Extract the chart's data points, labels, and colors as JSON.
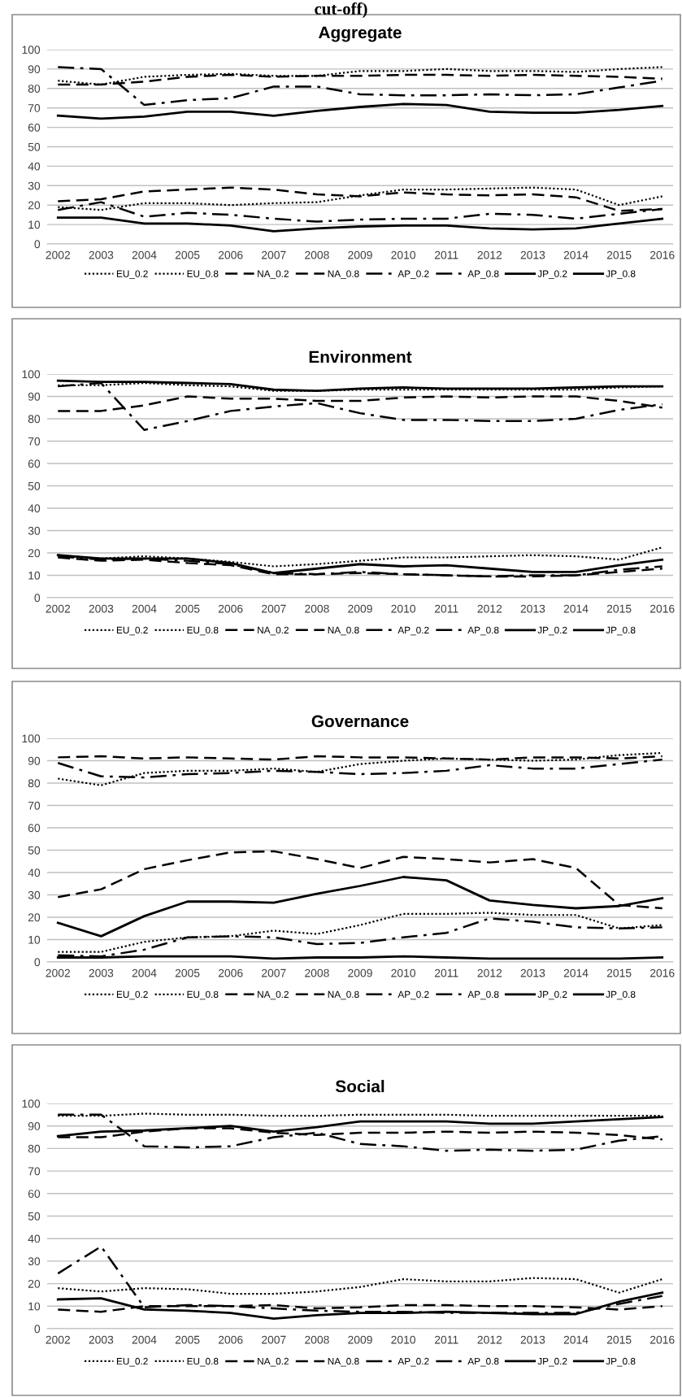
{
  "chart_data": [
    {
      "type": "line",
      "title": "Aggregate",
      "annotations": [
        "cut-off)"
      ],
      "categories": [
        "2002",
        "2003",
        "2004",
        "2005",
        "2006",
        "2007",
        "2008",
        "2009",
        "2010",
        "2011",
        "2012",
        "2013",
        "2014",
        "2015",
        "2016"
      ],
      "ylim": [
        0,
        100
      ],
      "yticks": [
        0,
        10,
        20,
        30,
        40,
        50,
        60,
        70,
        80,
        90,
        100
      ],
      "grid": "y",
      "legend": "bottom",
      "series": [
        {
          "name": "EU_0.2",
          "color": "#000000",
          "line_style": "dotted",
          "values": [
            19,
            17.5,
            21,
            21,
            20,
            21,
            21.5,
            25,
            28,
            28,
            28.5,
            29,
            28,
            20,
            24.5
          ]
        },
        {
          "name": "EU_0.8",
          "color": "#000000",
          "line_style": "dotted",
          "values": [
            84,
            82,
            86,
            87,
            87.5,
            86.5,
            86.5,
            89,
            89,
            90,
            89,
            89,
            88.5,
            90,
            91
          ]
        },
        {
          "name": "NA_0.2",
          "color": "#000000",
          "line_style": "dashed",
          "values": [
            22,
            23,
            27,
            28,
            29,
            28,
            25.5,
            24.5,
            26.5,
            25.5,
            25,
            25.5,
            24,
            17,
            18
          ]
        },
        {
          "name": "NA_0.8",
          "color": "#000000",
          "line_style": "dashed",
          "values": [
            82,
            82,
            83.5,
            86,
            87,
            86,
            86.5,
            86.5,
            87,
            87,
            86.5,
            87,
            86.5,
            86,
            85
          ]
        },
        {
          "name": "AP_0.2",
          "color": "#000000",
          "line_style": "dashdot",
          "values": [
            17.5,
            21.5,
            14,
            16,
            15,
            13,
            11.5,
            12.5,
            13,
            13,
            15.5,
            15,
            13,
            15.5,
            18
          ]
        },
        {
          "name": "AP_0.8",
          "color": "#000000",
          "line_style": "dashdot",
          "values": [
            91,
            90,
            71.5,
            74,
            75,
            81,
            81,
            77,
            76.5,
            76.5,
            77,
            76.5,
            77,
            80.5,
            84
          ]
        },
        {
          "name": "JP_0.2",
          "color": "#000000",
          "line_style": "solid",
          "values": [
            13.5,
            13.5,
            10.5,
            10.5,
            9.5,
            6.5,
            8,
            9,
            9.5,
            9.5,
            8,
            7.5,
            8,
            10.5,
            13
          ]
        },
        {
          "name": "JP_0.8",
          "color": "#000000",
          "line_style": "solid",
          "values": [
            66,
            64.5,
            65.5,
            68,
            68,
            66,
            68.5,
            70.5,
            72,
            71.5,
            68,
            67.5,
            67.5,
            69,
            71
          ]
        }
      ]
    },
    {
      "type": "line",
      "title": "Environment",
      "categories": [
        "2002",
        "2003",
        "2004",
        "2005",
        "2006",
        "2007",
        "2008",
        "2009",
        "2010",
        "2011",
        "2012",
        "2013",
        "2014",
        "2015",
        "2016"
      ],
      "ylim": [
        0,
        100
      ],
      "yticks": [
        0,
        10,
        20,
        30,
        40,
        50,
        60,
        70,
        80,
        90,
        100
      ],
      "grid": "y",
      "legend": "bottom",
      "series": [
        {
          "name": "EU_0.2",
          "color": "#000000",
          "line_style": "dotted",
          "values": [
            19,
            17.5,
            18.5,
            17.5,
            16,
            14,
            15,
            16.5,
            18,
            18,
            18.5,
            19,
            18.5,
            17,
            22.5
          ]
        },
        {
          "name": "EU_0.8",
          "color": "#000000",
          "line_style": "dotted",
          "values": [
            95,
            95,
            96,
            95,
            94.5,
            92.5,
            92.5,
            93,
            93,
            93,
            93,
            93,
            93,
            94,
            94.5
          ]
        },
        {
          "name": "NA_0.2",
          "color": "#000000",
          "line_style": "dashed",
          "values": [
            18,
            16.5,
            17,
            15.5,
            14.5,
            10.5,
            10.5,
            11,
            10.5,
            10,
            9.5,
            9.5,
            10,
            11.5,
            13
          ]
        },
        {
          "name": "NA_0.8",
          "color": "#000000",
          "line_style": "dashed",
          "values": [
            83.5,
            83.5,
            86,
            90,
            89,
            89,
            88,
            88,
            89.5,
            90,
            89.5,
            90,
            90,
            88,
            85
          ]
        },
        {
          "name": "AP_0.2",
          "color": "#000000",
          "line_style": "dashdot",
          "values": [
            18.5,
            17,
            17.5,
            16.5,
            15,
            11,
            10.5,
            11.5,
            10.5,
            10,
            9.5,
            10,
            10,
            12.5,
            14
          ]
        },
        {
          "name": "AP_0.8",
          "color": "#000000",
          "line_style": "dashdot",
          "values": [
            94.5,
            96,
            75,
            79,
            83.5,
            85.5,
            87,
            82.5,
            79.5,
            79.5,
            79,
            79,
            80,
            84,
            86.5
          ]
        },
        {
          "name": "JP_0.2",
          "color": "#000000",
          "line_style": "solid",
          "values": [
            19,
            17.5,
            17.5,
            17.5,
            15.5,
            11,
            13,
            15,
            14,
            14.5,
            13,
            11.5,
            11.5,
            14.5,
            17
          ]
        },
        {
          "name": "JP_0.8",
          "color": "#000000",
          "line_style": "solid",
          "values": [
            97,
            96.5,
            96.5,
            96,
            95.5,
            93,
            92.5,
            93.5,
            94,
            93.5,
            93.5,
            93.5,
            94,
            94.5,
            94.5
          ]
        }
      ]
    },
    {
      "type": "line",
      "title": "Governance",
      "categories": [
        "2002",
        "2003",
        "2004",
        "2005",
        "2006",
        "2007",
        "2008",
        "2009",
        "2010",
        "2011",
        "2012",
        "2013",
        "2014",
        "2015",
        "2016"
      ],
      "ylim": [
        0,
        100
      ],
      "yticks": [
        0,
        10,
        20,
        30,
        40,
        50,
        60,
        70,
        80,
        90,
        100
      ],
      "grid": "y",
      "legend": "bottom",
      "series": [
        {
          "name": "EU_0.2",
          "color": "#000000",
          "line_style": "dotted",
          "values": [
            4.5,
            4.5,
            9,
            11,
            11.5,
            14,
            12.5,
            16.5,
            21.5,
            21.5,
            22,
            21,
            21,
            15,
            16.5
          ]
        },
        {
          "name": "EU_0.8",
          "color": "#000000",
          "line_style": "dotted",
          "values": [
            82,
            79,
            84.5,
            85.5,
            85.5,
            86.5,
            85,
            88.5,
            90,
            91,
            90.5,
            90,
            90.5,
            92.5,
            93.5
          ]
        },
        {
          "name": "NA_0.2",
          "color": "#000000",
          "line_style": "dashed",
          "values": [
            29,
            32.5,
            41.5,
            45.5,
            49,
            49.5,
            46,
            42,
            47,
            46,
            44.5,
            46,
            42,
            25.5,
            24
          ]
        },
        {
          "name": "NA_0.8",
          "color": "#000000",
          "line_style": "dashed",
          "values": [
            91.5,
            92,
            91,
            91.5,
            91,
            90.5,
            92,
            91.5,
            91.5,
            91,
            90.5,
            91.5,
            91.5,
            91,
            92
          ]
        },
        {
          "name": "AP_0.2",
          "color": "#000000",
          "line_style": "dashdot",
          "values": [
            3,
            2.5,
            5.5,
            11,
            11.5,
            11,
            8,
            8.5,
            11,
            13,
            19.5,
            18,
            15.5,
            15,
            15.5
          ]
        },
        {
          "name": "AP_0.8",
          "color": "#000000",
          "line_style": "dashdot",
          "values": [
            89,
            83,
            82.5,
            84,
            84.5,
            85.5,
            85,
            84,
            84.5,
            85.5,
            88,
            86.5,
            86.5,
            88.5,
            90.5
          ]
        },
        {
          "name": "JP_0.2",
          "color": "#000000",
          "line_style": "solid",
          "values": [
            2,
            2,
            2.5,
            2.5,
            2.5,
            1.5,
            2,
            2,
            2.5,
            2,
            1.5,
            1.5,
            1.5,
            1.5,
            2
          ]
        },
        {
          "name": "JP_0.8",
          "color": "#000000",
          "line_style": "solid",
          "values": [
            17.5,
            11.5,
            20.5,
            27,
            27,
            26.5,
            30.5,
            34,
            38,
            36.5,
            27.5,
            25.5,
            24,
            25,
            28.5
          ]
        }
      ]
    },
    {
      "type": "line",
      "title": "Social",
      "categories": [
        "2002",
        "2003",
        "2004",
        "2005",
        "2006",
        "2007",
        "2008",
        "2009",
        "2010",
        "2011",
        "2012",
        "2013",
        "2014",
        "2015",
        "2016"
      ],
      "ylim": [
        0,
        100
      ],
      "yticks": [
        0,
        10,
        20,
        30,
        40,
        50,
        60,
        70,
        80,
        90,
        100
      ],
      "grid": "y",
      "legend": "bottom",
      "series": [
        {
          "name": "EU_0.2",
          "color": "#000000",
          "line_style": "dotted",
          "values": [
            18,
            16.5,
            18,
            17.5,
            15.5,
            15.5,
            16.5,
            18.5,
            22,
            21,
            21,
            22.5,
            22,
            16,
            22
          ]
        },
        {
          "name": "EU_0.8",
          "color": "#000000",
          "line_style": "dotted",
          "values": [
            94.5,
            94.5,
            95.5,
            95,
            95,
            94.5,
            94.5,
            95,
            95,
            95,
            94.5,
            94.5,
            94.5,
            94.5,
            94.5
          ]
        },
        {
          "name": "NA_0.2",
          "color": "#000000",
          "line_style": "dashed",
          "values": [
            8.5,
            7.5,
            10,
            10,
            10,
            10.5,
            9,
            9.5,
            10.5,
            10.5,
            10,
            10,
            9.5,
            8.5,
            10
          ]
        },
        {
          "name": "NA_0.8",
          "color": "#000000",
          "line_style": "dashed",
          "values": [
            85,
            85,
            87.5,
            89,
            89,
            87,
            86,
            87,
            87,
            87.5,
            87,
            87.5,
            87,
            86,
            84
          ]
        },
        {
          "name": "AP_0.2",
          "color": "#000000",
          "line_style": "dashdot",
          "values": [
            24.5,
            36.5,
            9.5,
            10.5,
            10,
            9,
            8,
            7.5,
            7.5,
            7,
            7,
            7,
            7,
            11,
            14.5
          ]
        },
        {
          "name": "AP_0.8",
          "color": "#000000",
          "line_style": "dashdot",
          "values": [
            95,
            95,
            81,
            80.5,
            81,
            85,
            87,
            82,
            81,
            79,
            79.5,
            79,
            79.5,
            83.5,
            85.5
          ]
        },
        {
          "name": "JP_0.2",
          "color": "#000000",
          "line_style": "solid",
          "values": [
            13,
            13.5,
            8.5,
            8,
            7,
            4.5,
            6,
            7,
            7,
            7.5,
            7,
            6.5,
            6.5,
            12,
            16
          ]
        },
        {
          "name": "JP_0.8",
          "color": "#000000",
          "line_style": "solid",
          "values": [
            85.5,
            87.5,
            88,
            89,
            90,
            87.5,
            89.5,
            92,
            92,
            92,
            91,
            91,
            92,
            93,
            94
          ]
        }
      ]
    }
  ]
}
